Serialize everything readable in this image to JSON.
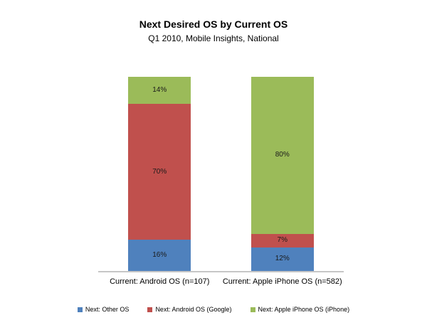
{
  "chart": {
    "title": "Next Desired OS by Current OS",
    "subtitle": "Q1 2010, Mobile Insights, National"
  },
  "chart_data": {
    "type": "bar",
    "subtype": "stacked-100",
    "title": "Next Desired OS by Current OS",
    "subtitle": "Q1 2010, Mobile Insights, National",
    "xlabel": "",
    "ylabel": "",
    "grid": false,
    "legend_position": "bottom",
    "axis_line_color": "#c6c6c6",
    "categories": [
      "Current: Android OS (n=107)",
      "Current: Apple iPhone OS (n=582)"
    ],
    "series": [
      {
        "name": "Next: Other OS",
        "color": "#4f81bd",
        "values": [
          16,
          12
        ]
      },
      {
        "name": "Next: Android OS (Google)",
        "color": "#c0504d",
        "values": [
          70,
          7
        ]
      },
      {
        "name": "Next: Apple iPhone OS (iPhone)",
        "color": "#9bbb59",
        "values": [
          14,
          80
        ]
      }
    ],
    "data_labels": [
      [
        "16%",
        "70%",
        "14%"
      ],
      [
        "12%",
        "7%",
        "80%"
      ]
    ]
  }
}
